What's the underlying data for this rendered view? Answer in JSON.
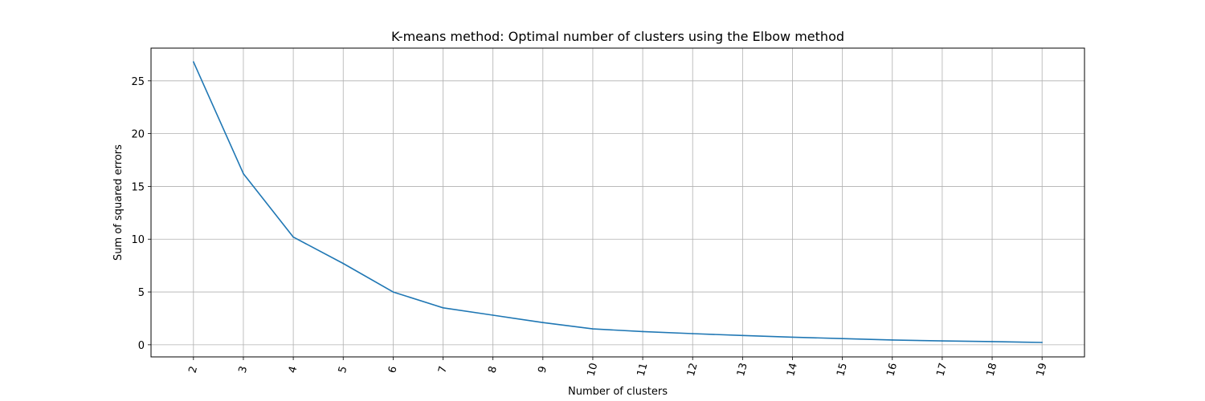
{
  "chart_data": {
    "type": "line",
    "title": "K-means method: Optimal number of clusters using the Elbow method",
    "xlabel": "Number of clusters",
    "ylabel": "Sum of squared errors",
    "x": [
      2,
      3,
      4,
      5,
      6,
      7,
      8,
      9,
      10,
      11,
      12,
      13,
      14,
      15,
      16,
      17,
      18,
      19
    ],
    "series": [
      {
        "name": "",
        "color": "#1f77b4",
        "values": [
          26.8,
          16.2,
          10.2,
          7.7,
          5.0,
          3.5,
          2.8,
          2.1,
          1.5,
          1.25,
          1.05,
          0.88,
          0.72,
          0.58,
          0.45,
          0.36,
          0.3,
          0.22
        ]
      }
    ],
    "xticks": [
      "2",
      "3",
      "4",
      "5",
      "6",
      "7",
      "8",
      "9",
      "10",
      "11",
      "12",
      "13",
      "14",
      "15",
      "16",
      "17",
      "18",
      "19"
    ],
    "yticks": [
      0,
      5,
      10,
      15,
      20,
      25
    ],
    "xlim": [
      1.15,
      19.85
    ],
    "ylim": [
      -1.15,
      28.1
    ],
    "xtick_rotation": 75,
    "grid": true,
    "legend": "none"
  }
}
